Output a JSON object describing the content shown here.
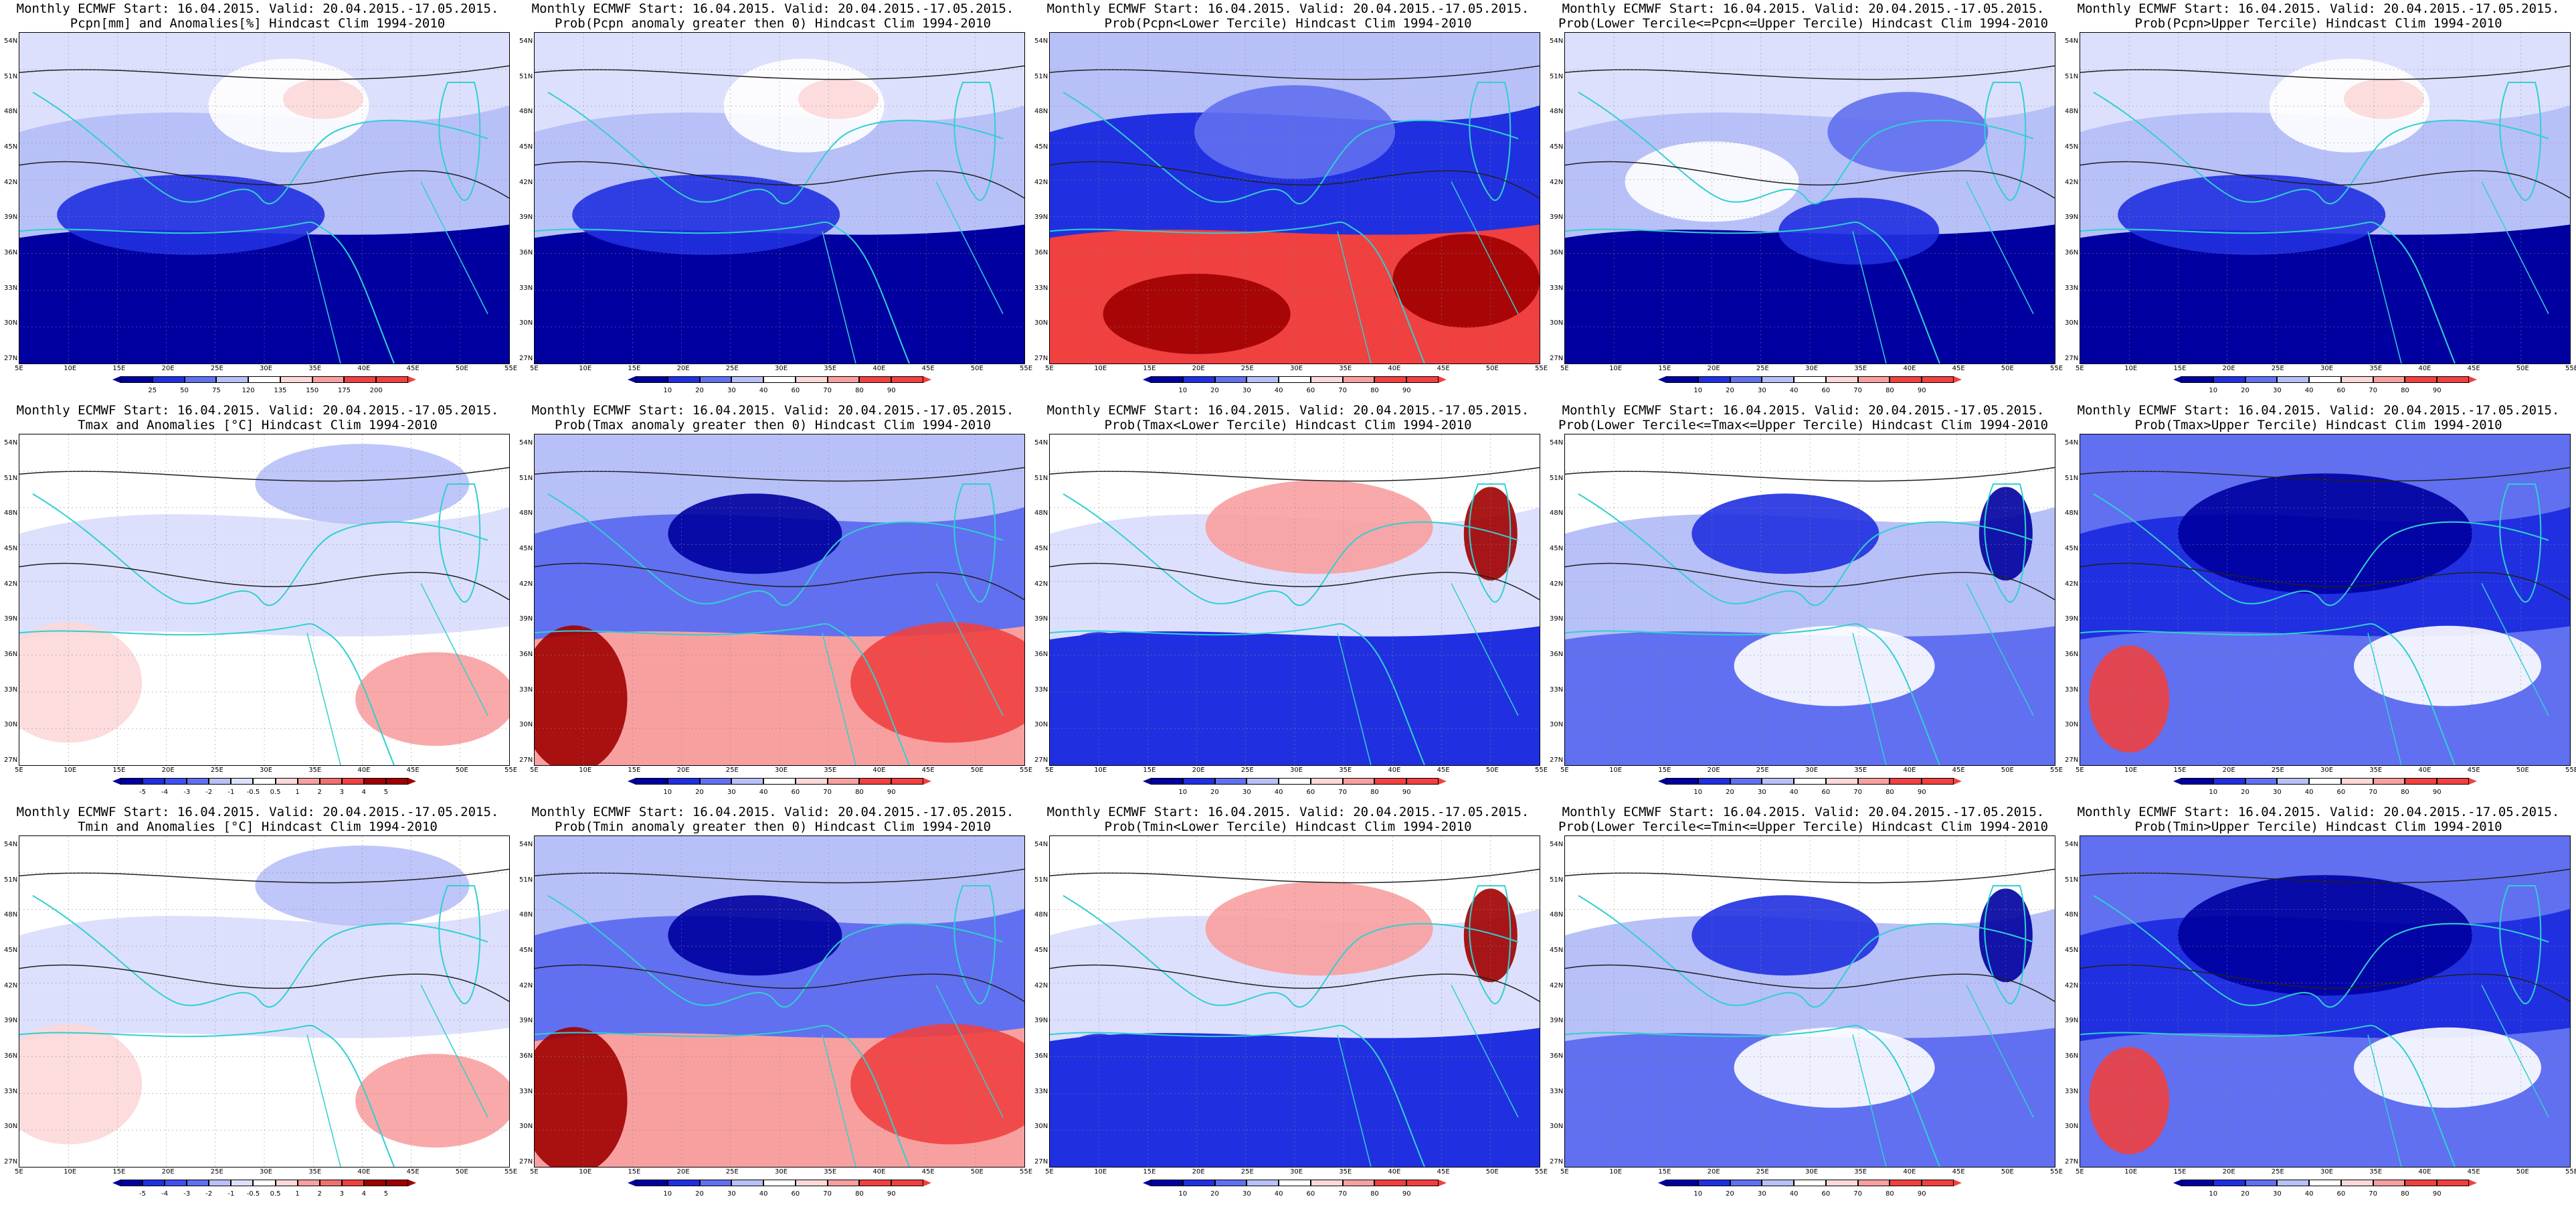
{
  "title_line1": "Monthly ECMWF Start: 16.04.2015. Valid: 20.04.2015.-17.05.2015.",
  "lat_labels": [
    "54N",
    "51N",
    "48N",
    "45N",
    "42N",
    "39N",
    "36N",
    "33N",
    "30N",
    "27N"
  ],
  "lon_labels": [
    "5E",
    "10E",
    "15E",
    "20E",
    "25E",
    "30E",
    "35E",
    "40E",
    "45E",
    "50E",
    "55E"
  ],
  "colors": {
    "deep_blue": "#0000a0",
    "blue": "#2030e0",
    "mid_blue": "#6070f0",
    "light_blue": "#b8c0f8",
    "pale_blue": "#dde0fc",
    "white": "#ffffff",
    "pale_red": "#fcd8d8",
    "light_red": "#f8a0a0",
    "red": "#f04040",
    "deep_red": "#a00000",
    "coast": "#30d0d0",
    "contour": "#202020"
  },
  "colorbars": {
    "pcpn_anom": {
      "ticks": [
        "25",
        "50",
        "75",
        "120",
        "135",
        "150",
        "175",
        "200"
      ]
    },
    "prob": {
      "ticks": [
        "10",
        "20",
        "30",
        "40",
        "60",
        "70",
        "80",
        "90"
      ]
    },
    "temp_anom": {
      "ticks": [
        "-5",
        "-4",
        "-3",
        "-2",
        "-1",
        "-0.5",
        "0.5",
        "1",
        "2",
        "3",
        "4",
        "5"
      ]
    }
  },
  "panels": [
    {
      "id": "p-r1c1",
      "row": 0,
      "col": 0,
      "line2": "Pcpn[mm] and Anomalies[%] Hindcast Clim 1994-2010",
      "colorbar": "pcpn_anom",
      "scheme": "pcpn"
    },
    {
      "id": "p-r1c2",
      "row": 0,
      "col": 1,
      "line2": "Prob(Pcpn anomaly greater then 0) Hindcast Clim 1994-2010",
      "colorbar": "prob",
      "scheme": "pcpn"
    },
    {
      "id": "p-r1c3",
      "row": 0,
      "col": 2,
      "line2": "Prob(Pcpn<Lower Tercile) Hindcast Clim 1994-2010",
      "colorbar": "prob",
      "scheme": "pcpn-low"
    },
    {
      "id": "p-r1c4",
      "row": 0,
      "col": 3,
      "line2": "Prob(Lower Tercile<=Pcpn<=Upper Tercile) Hindcast Clim 1994-2010",
      "colorbar": "prob",
      "scheme": "pcpn-mid"
    },
    {
      "id": "p-r1c5",
      "row": 0,
      "col": 4,
      "line2": "Prob(Pcpn>Upper Tercile) Hindcast Clim 1994-2010",
      "colorbar": "prob",
      "scheme": "pcpn"
    },
    {
      "id": "p-r2c1",
      "row": 1,
      "col": 0,
      "line2": "Tmax and Anomalies [°C] Hindcast Clim 1994-2010",
      "colorbar": "temp_anom",
      "scheme": "t-anom"
    },
    {
      "id": "p-r2c2",
      "row": 1,
      "col": 1,
      "line2": "Prob(Tmax anomaly greater then 0) Hindcast Clim 1994-2010",
      "colorbar": "prob",
      "scheme": "t-pos"
    },
    {
      "id": "p-r2c3",
      "row": 1,
      "col": 2,
      "line2": "Prob(Tmax<Lower Tercile) Hindcast Clim 1994-2010",
      "colorbar": "prob",
      "scheme": "t-low"
    },
    {
      "id": "p-r2c4",
      "row": 1,
      "col": 3,
      "line2": "Prob(Lower Tercile<=Tmax<=Upper Tercile) Hindcast Clim 1994-2010",
      "colorbar": "prob",
      "scheme": "t-mid"
    },
    {
      "id": "p-r2c5",
      "row": 1,
      "col": 4,
      "line2": "Prob(Tmax>Upper Tercile) Hindcast Clim 1994-2010",
      "colorbar": "prob",
      "scheme": "t-up"
    },
    {
      "id": "p-r3c1",
      "row": 2,
      "col": 0,
      "line2": "Tmin and Anomalies [°C] Hindcast Clim 1994-2010",
      "colorbar": "temp_anom",
      "scheme": "t-anom"
    },
    {
      "id": "p-r3c2",
      "row": 2,
      "col": 1,
      "line2": "Prob(Tmin anomaly greater then 0) Hindcast Clim 1994-2010",
      "colorbar": "prob",
      "scheme": "t-pos"
    },
    {
      "id": "p-r3c3",
      "row": 2,
      "col": 2,
      "line2": "Prob(Tmin<Lower Tercile) Hindcast Clim 1994-2010",
      "colorbar": "prob",
      "scheme": "t-low"
    },
    {
      "id": "p-r3c4",
      "row": 2,
      "col": 3,
      "line2": "Prob(Lower Tercile<=Tmin<=Upper Tercile) Hindcast Clim 1994-2010",
      "colorbar": "prob",
      "scheme": "t-mid"
    },
    {
      "id": "p-r3c5",
      "row": 2,
      "col": 4,
      "line2": "Prob(Tmin>Upper Tercile) Hindcast Clim 1994-2010",
      "colorbar": "prob",
      "scheme": "t-up"
    }
  ]
}
